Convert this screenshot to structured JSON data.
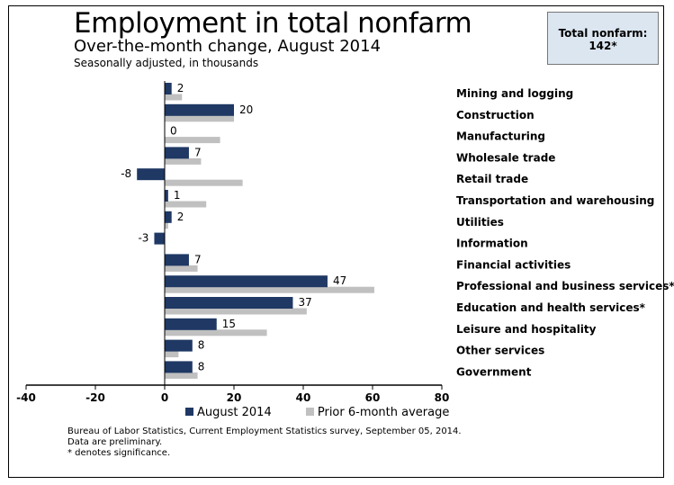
{
  "header": {
    "title": "Employment in total nonfarm",
    "subtitle": "Over-the-month change, August 2014",
    "note": "Seasonally adjusted, in thousands"
  },
  "total_box": {
    "label": "Total nonfarm:",
    "value": "142*"
  },
  "footer": {
    "source": "Bureau of Labor Statistics, Current Employment Statistics survey, September 05, 2014.",
    "preliminary": "Data are preliminary.",
    "significance": "* denotes significance."
  },
  "colors": {
    "series_primary": "#1f3864",
    "series_secondary": "#c0c0c0",
    "axis": "#000000",
    "total_box_bg": "#dce6f1"
  },
  "chart_data": {
    "type": "bar",
    "orientation": "horizontal",
    "title": "Employment in total nonfarm",
    "xlabel": "",
    "ylabel": "",
    "xlim": [
      -40,
      80
    ],
    "xticks": [
      -40,
      -20,
      0,
      20,
      40,
      60,
      80
    ],
    "grid": false,
    "legend_position": "bottom",
    "categories": [
      "Mining and logging",
      "Construction",
      "Manufacturing",
      "Wholesale trade",
      "Retail trade",
      "Transportation and warehousing",
      "Utilities",
      "Information",
      "Financial activities",
      "Professional and business services*",
      "Education and health services*",
      "Leisure and hospitality",
      "Other services",
      "Government"
    ],
    "series": [
      {
        "name": "August 2014",
        "values": [
          2,
          20,
          0,
          7,
          -8,
          1,
          2,
          -3,
          7,
          47,
          37,
          15,
          8,
          8
        ],
        "labeled": true
      },
      {
        "name": "Prior 6-month average",
        "values": [
          5,
          20,
          16,
          10.5,
          22.5,
          12,
          1,
          0,
          9.5,
          60.5,
          41,
          29.5,
          4,
          9.5
        ],
        "labeled": false
      }
    ]
  }
}
